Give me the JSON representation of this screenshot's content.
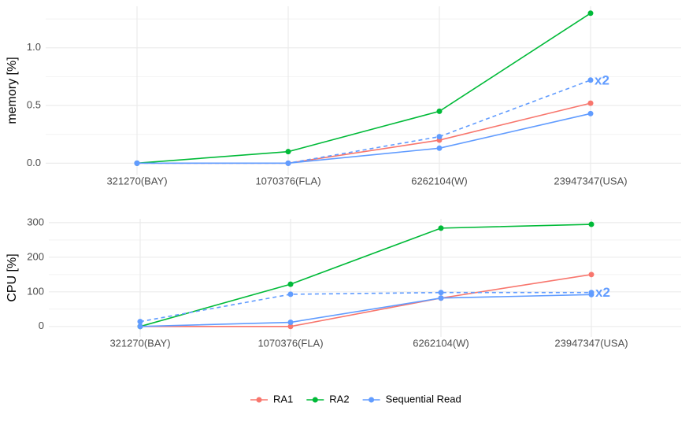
{
  "chart_data": [
    {
      "type": "line",
      "ylabel": "memory [%]",
      "categories": [
        "321270(BAY)",
        "1070376(FLA)",
        "6262104(W)",
        "23947347(USA)"
      ],
      "series": [
        {
          "name": "RA1",
          "color": "#f8766d",
          "values": [
            0,
            0,
            0.2,
            0.52
          ]
        },
        {
          "name": "RA2",
          "color": "#00ba38",
          "values": [
            0,
            0.1,
            0.45,
            1.3
          ]
        },
        {
          "name": "Sequential Read",
          "color": "#619cff",
          "values": [
            0,
            0,
            0.13,
            0.43
          ]
        },
        {
          "color": "#619cff",
          "dashed": true,
          "annotation": "x2",
          "values": [
            0,
            0,
            0.23,
            0.72
          ]
        }
      ],
      "ylim": [
        -0.1,
        1.36
      ],
      "yticks": [
        {
          "value": 0,
          "label": "0.0"
        },
        {
          "value": 0.5,
          "label": "0.5"
        },
        {
          "value": 1,
          "label": "1.0"
        }
      ],
      "grid": true
    },
    {
      "type": "line",
      "ylabel": "CPU [%]",
      "categories": [
        "321270(BAY)",
        "1070376(FLA)",
        "6262104(W)",
        "23947347(USA)"
      ],
      "series": [
        {
          "color": "#f8766d",
          "values": [
            0,
            0,
            82,
            150
          ]
        },
        {
          "color": "#00ba38",
          "values": [
            0,
            122,
            284,
            295
          ]
        },
        {
          "color": "#619cff",
          "values": [
            0,
            12,
            82,
            92
          ]
        },
        {
          "color": "#619cff",
          "dashed": true,
          "annotation": "x2",
          "values": [
            14,
            93,
            98,
            98
          ]
        }
      ],
      "ylim": [
        -30,
        311
      ],
      "yticks": [
        0,
        100,
        200,
        300
      ],
      "grid": true
    }
  ]
}
